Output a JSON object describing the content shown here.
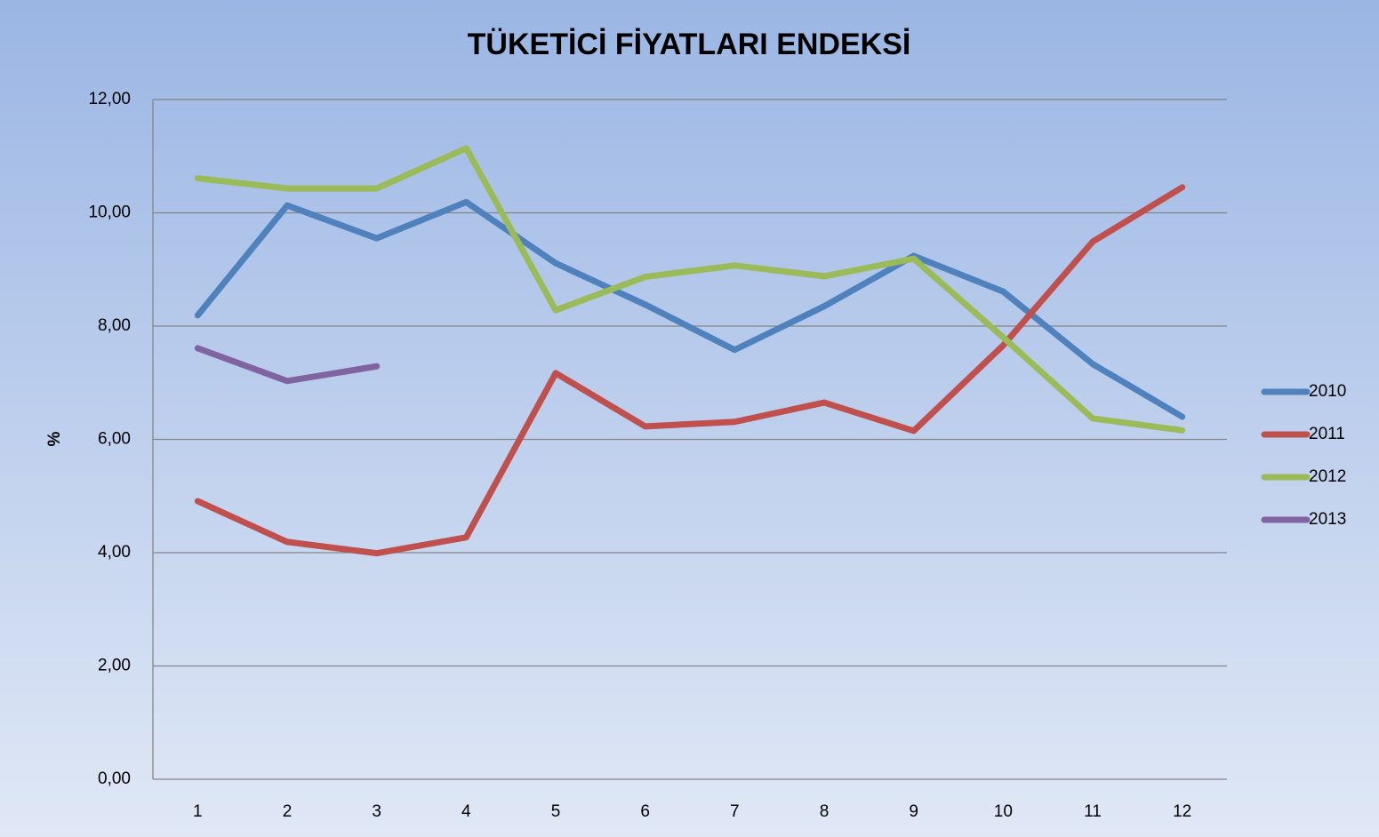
{
  "chart_data": {
    "type": "line",
    "title": "TÜKETİCİ FİYATLARI ENDEKSİ",
    "y_label": "%",
    "categories": [
      1,
      2,
      3,
      4,
      5,
      6,
      7,
      8,
      9,
      10,
      11,
      12
    ],
    "series": [
      {
        "name": "2010",
        "color": "#4f81bd",
        "values": [
          8.19,
          10.13,
          9.55,
          10.19,
          9.11,
          8.38,
          7.58,
          8.35,
          9.24,
          8.61,
          7.33,
          6.4
        ]
      },
      {
        "name": "2011",
        "color": "#c0504d",
        "values": [
          4.91,
          4.19,
          3.99,
          4.27,
          7.17,
          6.23,
          6.31,
          6.65,
          6.15,
          7.66,
          9.49,
          10.45
        ]
      },
      {
        "name": "2012",
        "color": "#9bbb59",
        "values": [
          10.61,
          10.43,
          10.43,
          11.14,
          8.28,
          8.87,
          9.07,
          8.88,
          9.19,
          7.8,
          6.37,
          6.16
        ]
      },
      {
        "name": "2013",
        "color": "#8064a2",
        "values": [
          7.61,
          7.03,
          7.29,
          null,
          null,
          null,
          null,
          null,
          null,
          null,
          null,
          null
        ]
      }
    ],
    "ylim": [
      0,
      12
    ],
    "yticks": [
      {
        "value": 0,
        "label": "0,00"
      },
      {
        "value": 2,
        "label": "2,00"
      },
      {
        "value": 4,
        "label": "4,00"
      },
      {
        "value": 6,
        "label": "6,00"
      },
      {
        "value": 8,
        "label": "8,00"
      },
      {
        "value": 10,
        "label": "10,00"
      },
      {
        "value": 12,
        "label": "12,00"
      }
    ],
    "grid": true,
    "legend": "right"
  }
}
